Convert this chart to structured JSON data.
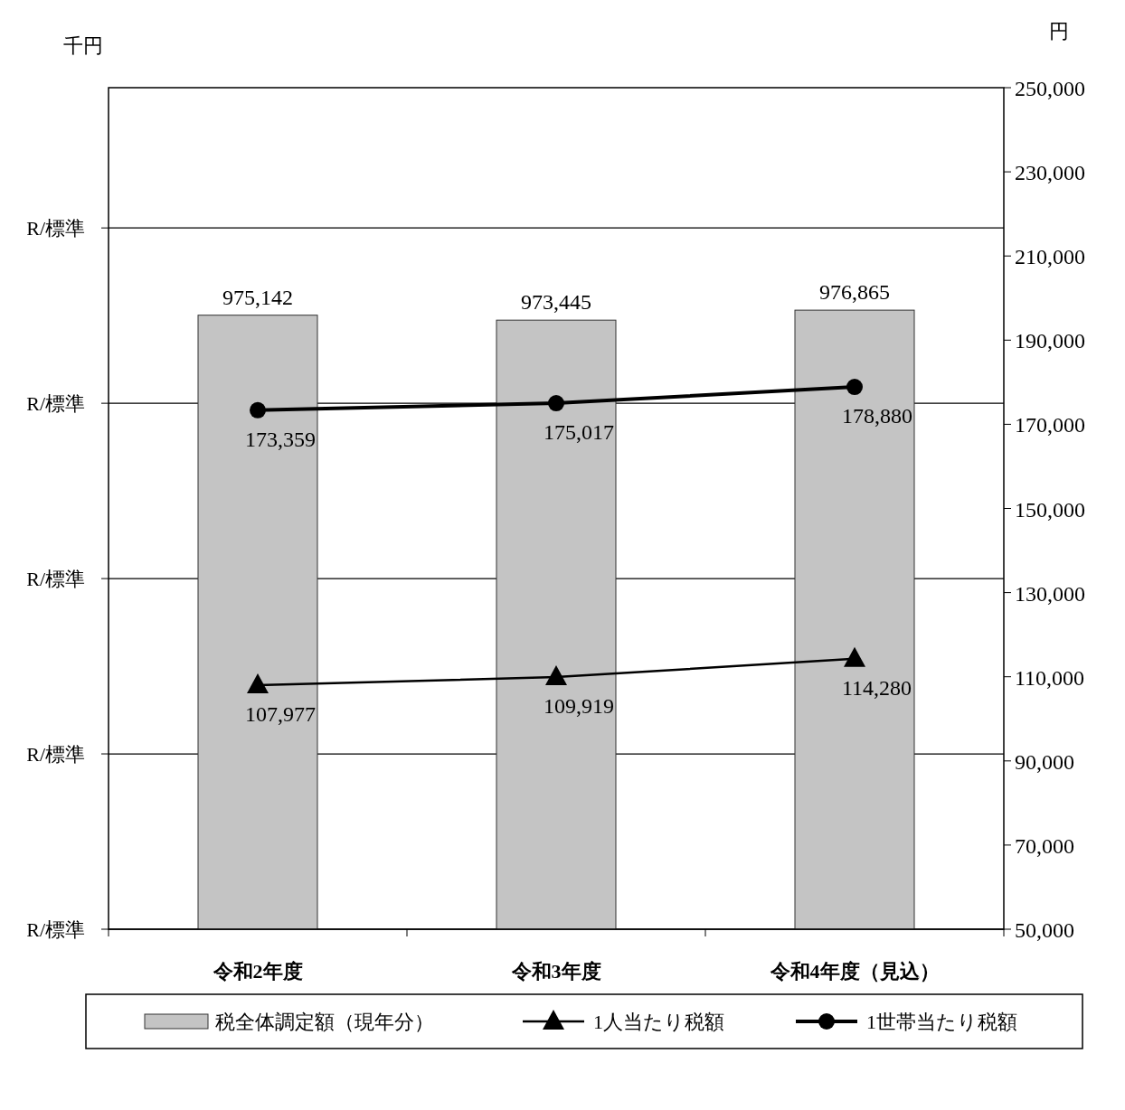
{
  "chart_data": {
    "type": "bar",
    "ylabel": "千円",
    "y2label": "円",
    "categories": [
      "令和2年度",
      "令和3年度",
      "令和4年度（見込）"
    ],
    "series": [
      {
        "name": "税全体調定額（現年分）",
        "color": "#c4c4c4",
        "values": [
          975142,
          973445,
          976865
        ],
        "value_labels": [
          "975,142",
          "973,445",
          "976,865"
        ]
      },
      {
        "name": "1人当たり税額",
        "type": "line",
        "axis": "y2",
        "color": "#000000",
        "marker": "triangle",
        "values": [
          107977,
          109919,
          114280
        ],
        "value_labels": [
          "107,977",
          "109,919",
          "114,280"
        ]
      },
      {
        "name": "1世帯当たり税額",
        "type": "line",
        "axis": "y2",
        "color": "#000000",
        "marker": "circle",
        "values": [
          173359,
          175017,
          178880
        ],
        "value_labels": [
          "173,359",
          "175,017",
          "178,880"
        ]
      }
    ],
    "ylim": [
      765000,
      1053000
    ],
    "yticks": [
      {
        "value": 765000,
        "label": null
      },
      {
        "value": 825000,
        "label": null
      },
      {
        "value": 885000,
        "label": null
      },
      {
        "value": 945000,
        "label": null
      },
      {
        "value": 1005000,
        "label": null
      }
    ],
    "annotations": [
      "R/標準",
      "R/標準",
      "R/標準",
      "R/標準",
      "R/標準"
    ],
    "y2lim": [
      50000,
      250000
    ],
    "y2ticks": [
      {
        "value": 50000,
        "label": "50,000"
      },
      {
        "value": 70000,
        "label": "70,000"
      },
      {
        "value": 90000,
        "label": "90,000"
      },
      {
        "value": 110000,
        "label": "110,000"
      },
      {
        "value": 130000,
        "label": "130,000"
      },
      {
        "value": 150000,
        "label": "150,000"
      },
      {
        "value": 170000,
        "label": "170,000"
      },
      {
        "value": 190000,
        "label": "190,000"
      },
      {
        "value": 210000,
        "label": "210,000"
      },
      {
        "value": 230000,
        "label": "230,000"
      },
      {
        "value": 250000,
        "label": "250,000"
      }
    ],
    "grid": "y",
    "legend": "bottom"
  }
}
